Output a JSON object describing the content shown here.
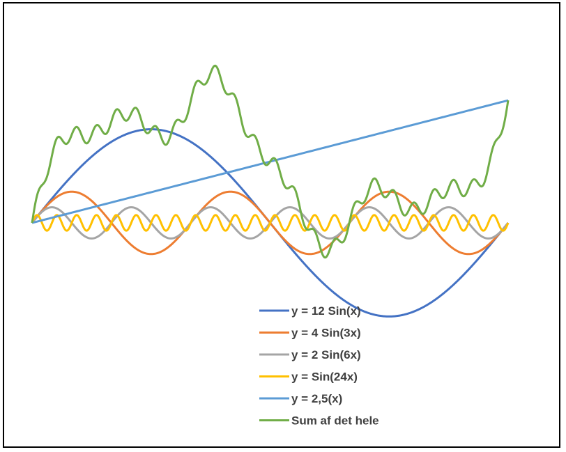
{
  "chart_data": {
    "type": "line",
    "title": "",
    "xlabel": "",
    "ylabel": "",
    "x_range": [
      0,
      6.2832
    ],
    "ylim": [
      -16,
      20
    ],
    "grid": false,
    "legend_position": "bottom-center",
    "series": [
      {
        "name": "y = 12 Sin(x)",
        "color": "#4472C4",
        "expression": "12*sin(x)"
      },
      {
        "name": "y = 4 Sin(3x)",
        "color": "#ED7D31",
        "expression": "4*sin(3x)"
      },
      {
        "name": "y = 2 Sin(6x)",
        "color": "#A5A5A5",
        "expression": "2*sin(6x)"
      },
      {
        "name": "y = Sin(24x)",
        "color": "#FFC000",
        "expression": "sin(24x)"
      },
      {
        "name": "y = 2,5(x)",
        "color": "#5B9BD5",
        "expression": "2.5*x"
      },
      {
        "name": "Sum af det hele",
        "color": "#70AD47",
        "expression": "12sin(x)+4sin(3x)+2sin(6x)+sin(24x)+2.5x"
      }
    ]
  }
}
